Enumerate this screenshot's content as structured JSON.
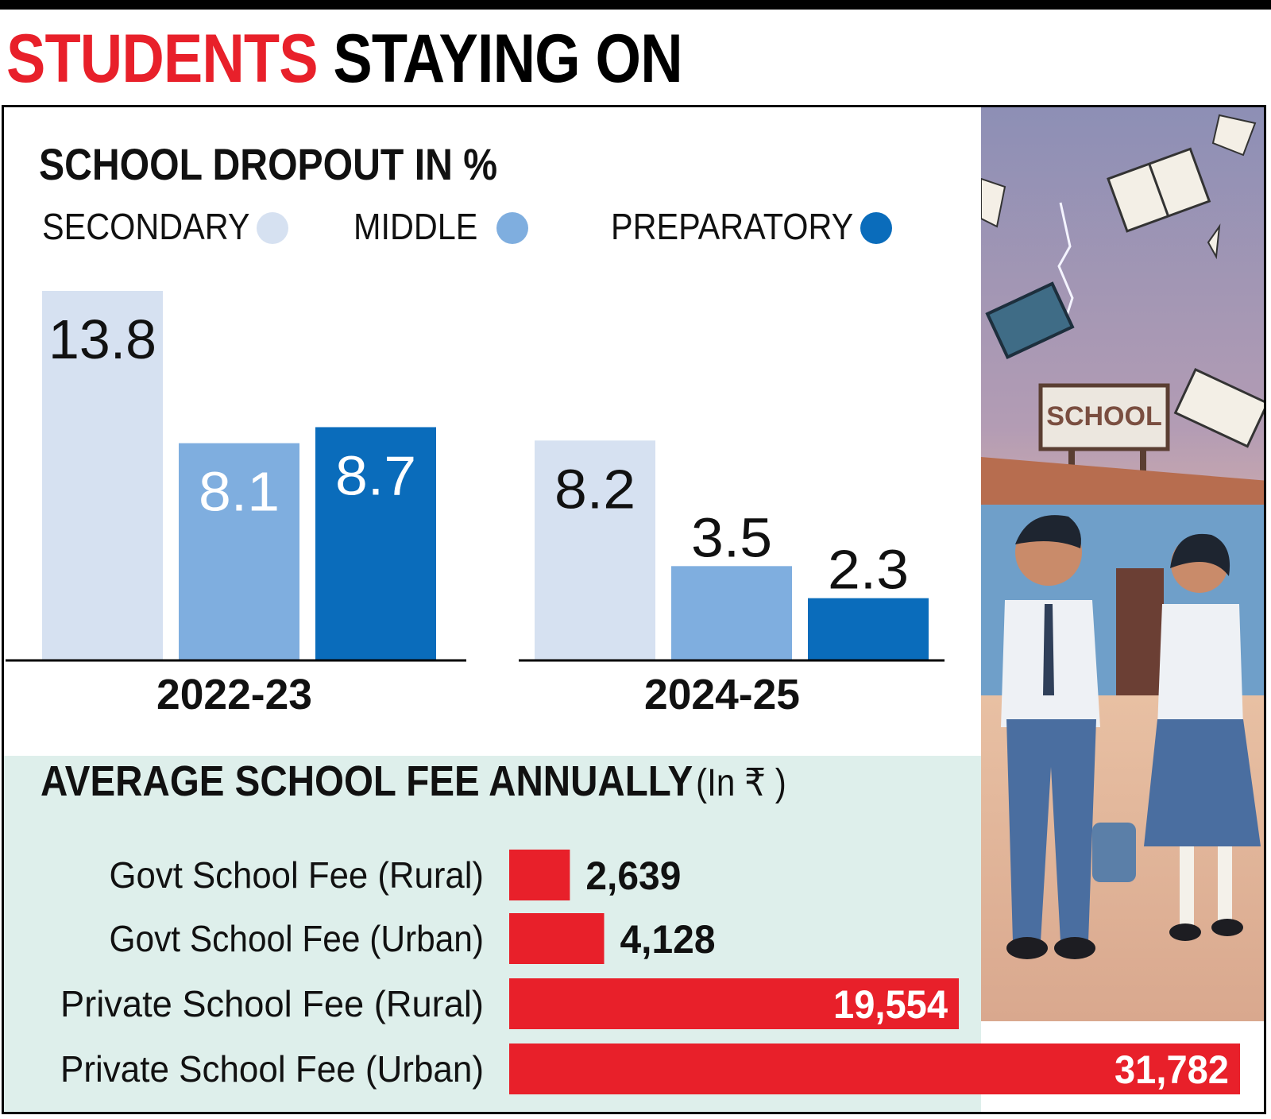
{
  "headline": {
    "part1": "STUDENTS",
    "part2": "STAYING ON"
  },
  "colors": {
    "accent_red": "#e8202a",
    "secondary": "#d6e1f1",
    "middle": "#7faedf",
    "preparatory": "#0a6cbb",
    "fee_panel_bg": "#deefeb"
  },
  "illustration": {
    "icon": "school-students-illustration-icon",
    "sign_text": "SCHOOL"
  },
  "chart_data": [
    {
      "type": "bar",
      "title": "SCHOOL DROPOUT IN %",
      "categories": [
        "2022-23",
        "2024-25"
      ],
      "series": [
        {
          "name": "SECONDARY",
          "color": "#d6e1f1",
          "values": [
            13.8,
            8.2
          ]
        },
        {
          "name": "MIDDLE",
          "color": "#7faedf",
          "values": [
            8.1,
            3.5
          ]
        },
        {
          "name": "PREPARATORY",
          "color": "#0a6cbb",
          "values": [
            8.7,
            2.3
          ]
        }
      ],
      "ylim": [
        0,
        13.8
      ],
      "legend": "top",
      "grid": false
    },
    {
      "type": "bar",
      "orientation": "horizontal",
      "title": "AVERAGE SCHOOL FEE ANNUALLY",
      "subtitle": "(In ₹ )",
      "categories": [
        "Govt School Fee (Rural)",
        "Govt School Fee (Urban)",
        "Private School Fee (Rural)",
        "Private School Fee (Urban)"
      ],
      "values": [
        2639,
        4128,
        19554,
        31782
      ],
      "value_labels": [
        "2,639",
        "4,128",
        "19,554",
        "31,782"
      ],
      "color": "#e8202a",
      "grid": false
    }
  ]
}
